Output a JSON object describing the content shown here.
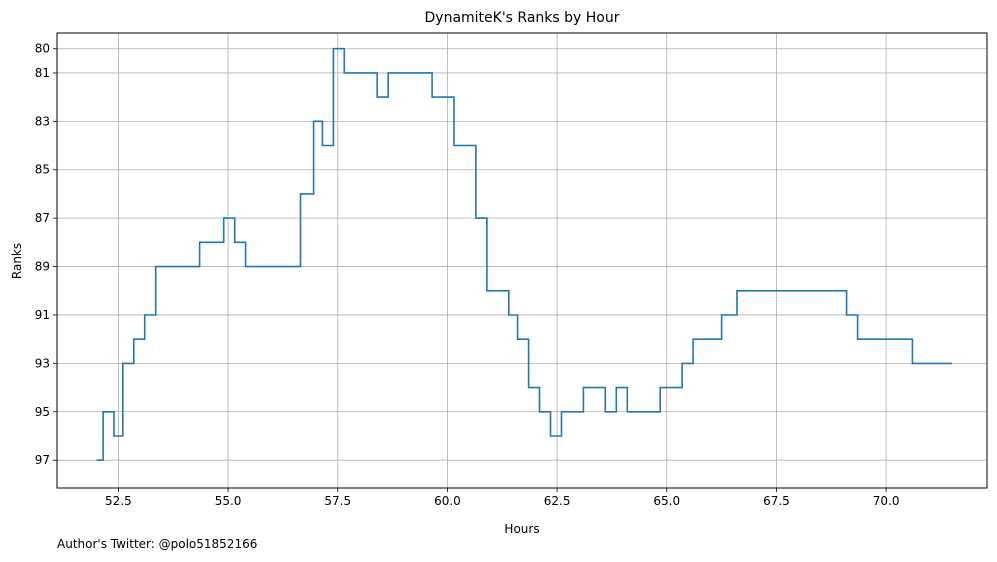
{
  "chart_data": {
    "type": "line",
    "drawstyle": "steps-post",
    "title": "DynamiteK's Ranks by Hour",
    "xlabel": "Hours",
    "ylabel": "Ranks",
    "xlim": [
      51.1,
      72.3
    ],
    "ylim": [
      98.15,
      79.35
    ],
    "y_inverted": true,
    "xticks": [
      52.5,
      55.0,
      57.5,
      60.0,
      62.5,
      65.0,
      67.5,
      70.0
    ],
    "xtick_labels": [
      "52.5",
      "55.0",
      "57.5",
      "60.0",
      "62.5",
      "65.0",
      "67.5",
      "70.0"
    ],
    "yticks": [
      80,
      81,
      83,
      85,
      87,
      89,
      91,
      93,
      95,
      97
    ],
    "ytick_labels": [
      "80",
      "81",
      "83",
      "85",
      "87",
      "89",
      "91",
      "93",
      "95",
      "97"
    ],
    "grid": true,
    "line_color": "#1f77b4",
    "series": [
      {
        "x": [
          52.0,
          52.15,
          52.4,
          52.6,
          52.85,
          53.1,
          53.35,
          54.35,
          54.9,
          55.15,
          55.4,
          56.65,
          56.95,
          57.15,
          57.4,
          57.65,
          58.4,
          58.65,
          59.65,
          60.15,
          60.65,
          60.9,
          61.4,
          61.6,
          61.85,
          62.1,
          62.35,
          62.6,
          63.1,
          63.6,
          63.85,
          64.1,
          64.85,
          65.35,
          65.6,
          66.25,
          66.6,
          69.1,
          69.35,
          70.6,
          71.5
        ],
        "y": [
          97,
          95,
          96,
          93,
          92,
          91,
          89,
          88,
          87,
          88,
          89,
          86,
          83,
          84,
          80,
          81,
          82,
          81,
          82,
          84,
          87,
          90,
          91,
          92,
          94,
          95,
          96,
          95,
          94,
          95,
          94,
          95,
          94,
          93,
          92,
          91,
          90,
          91,
          92,
          93,
          93
        ]
      }
    ]
  },
  "footnote": "Author's Twitter: @polo51852166"
}
